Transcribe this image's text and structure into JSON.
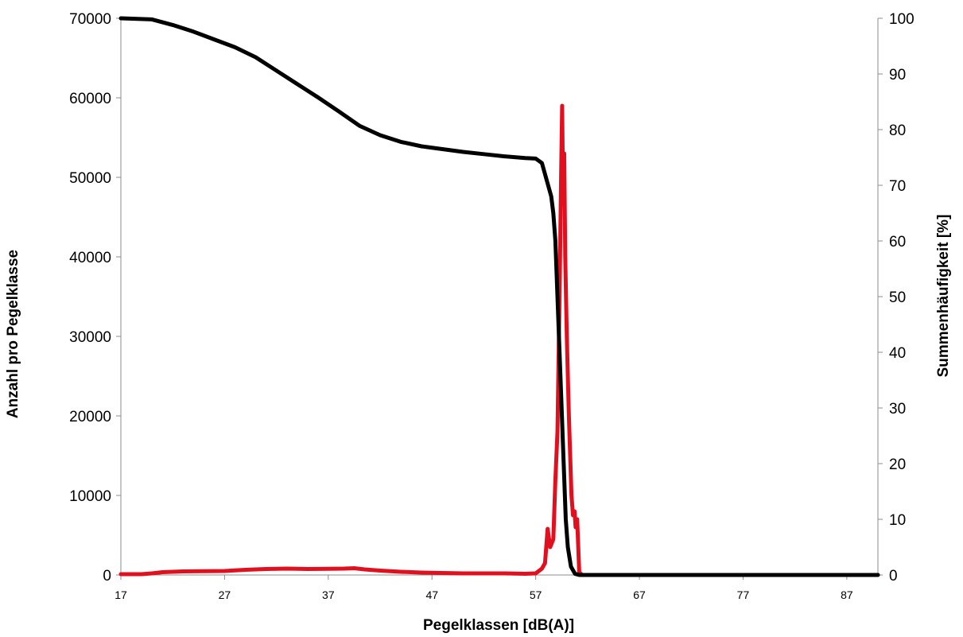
{
  "chart_data": {
    "type": "line",
    "title": "",
    "xlabel": "Pegelklassen [dB(A)]",
    "ylabel_left": "Anzahl pro Pegelklasse",
    "ylabel_right": "Summenhäufigkeit [%]",
    "xlim": [
      17,
      90
    ],
    "ylim_left": [
      0,
      70000
    ],
    "ylim_right": [
      0,
      100
    ],
    "x_ticks": [
      17,
      27,
      37,
      47,
      57,
      67,
      77,
      87
    ],
    "y_ticks_left": [
      0,
      10000,
      20000,
      30000,
      40000,
      50000,
      60000,
      70000
    ],
    "y_ticks_right": [
      0,
      10,
      20,
      30,
      40,
      50,
      60,
      70,
      80,
      90,
      100
    ],
    "grid": false,
    "legend": "none",
    "series": [
      {
        "axis": "left",
        "color": "#e0101f",
        "points": [
          [
            17,
            100
          ],
          [
            19,
            100
          ],
          [
            20,
            200
          ],
          [
            21,
            350
          ],
          [
            23,
            450
          ],
          [
            25,
            480
          ],
          [
            27,
            500
          ],
          [
            29,
            650
          ],
          [
            31,
            750
          ],
          [
            33,
            800
          ],
          [
            35,
            750
          ],
          [
            37,
            780
          ],
          [
            38.5,
            800
          ],
          [
            39.5,
            850
          ],
          [
            40.5,
            700
          ],
          [
            42,
            550
          ],
          [
            44,
            400
          ],
          [
            46,
            300
          ],
          [
            48,
            250
          ],
          [
            50,
            200
          ],
          [
            52,
            200
          ],
          [
            54,
            200
          ],
          [
            56,
            150
          ],
          [
            57,
            200
          ],
          [
            57.6,
            800
          ],
          [
            57.9,
            1500
          ],
          [
            58.15,
            5800
          ],
          [
            58.4,
            3500
          ],
          [
            58.7,
            4500
          ],
          [
            58.9,
            12000
          ],
          [
            59.1,
            18000
          ],
          [
            59.3,
            35000
          ],
          [
            59.45,
            50000
          ],
          [
            59.55,
            59000
          ],
          [
            59.65,
            47000
          ],
          [
            59.75,
            53000
          ],
          [
            59.85,
            40000
          ],
          [
            60.0,
            30000
          ],
          [
            60.2,
            20000
          ],
          [
            60.45,
            10000
          ],
          [
            60.6,
            7500
          ],
          [
            60.75,
            8000
          ],
          [
            60.85,
            6000
          ],
          [
            61.0,
            7000
          ],
          [
            61.2,
            300
          ],
          [
            61.5,
            0
          ],
          [
            65,
            0
          ],
          [
            75,
            0
          ],
          [
            85,
            0
          ],
          [
            90,
            0
          ]
        ]
      },
      {
        "axis": "right",
        "color": "#000000",
        "points": [
          [
            17,
            100
          ],
          [
            20,
            99.8
          ],
          [
            22,
            98.8
          ],
          [
            24,
            97.6
          ],
          [
            26,
            96.2
          ],
          [
            28,
            94.8
          ],
          [
            30,
            93.0
          ],
          [
            32,
            90.6
          ],
          [
            34,
            88.2
          ],
          [
            36,
            85.8
          ],
          [
            38,
            83.3
          ],
          [
            40,
            80.7
          ],
          [
            42,
            79.0
          ],
          [
            44,
            77.8
          ],
          [
            46,
            77.0
          ],
          [
            48,
            76.5
          ],
          [
            50,
            76.0
          ],
          [
            52,
            75.6
          ],
          [
            54,
            75.2
          ],
          [
            56,
            74.9
          ],
          [
            57,
            74.8
          ],
          [
            57.6,
            74.0
          ],
          [
            57.9,
            72.0
          ],
          [
            58.2,
            70.0
          ],
          [
            58.5,
            68.0
          ],
          [
            58.7,
            65.0
          ],
          [
            58.9,
            60.0
          ],
          [
            59.1,
            50.0
          ],
          [
            59.3,
            40.0
          ],
          [
            59.5,
            30.0
          ],
          [
            59.7,
            20.0
          ],
          [
            59.9,
            10.0
          ],
          [
            60.1,
            5.0
          ],
          [
            60.4,
            1.5
          ],
          [
            60.8,
            0.2
          ],
          [
            61.2,
            0
          ],
          [
            65,
            0
          ],
          [
            75,
            0
          ],
          [
            85,
            0
          ],
          [
            90,
            0
          ]
        ]
      }
    ]
  }
}
